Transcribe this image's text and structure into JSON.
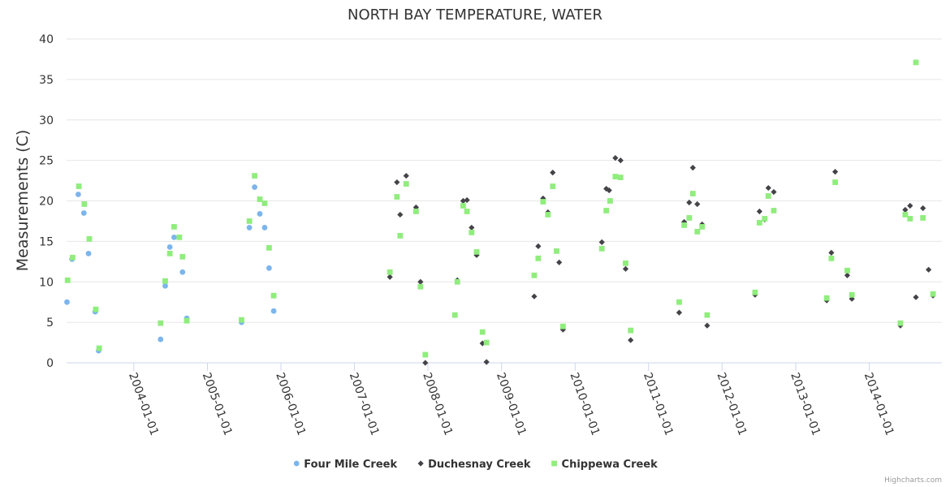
{
  "chart_data": {
    "type": "scatter",
    "title": "NORTH BAY TEMPERATURE, WATER",
    "ylabel": "Measurements (C)",
    "xlabel": "",
    "ylim": [
      0,
      40
    ],
    "yticks": [
      0,
      5,
      10,
      15,
      20,
      25,
      30,
      35,
      40
    ],
    "xlim": [
      "2003-02-01",
      "2014-12-28"
    ],
    "xticks": [
      "2004-01-01",
      "2005-01-01",
      "2006-01-01",
      "2007-01-01",
      "2008-01-01",
      "2009-01-01",
      "2010-01-01",
      "2011-01-01",
      "2012-01-01",
      "2013-01-01",
      "2014-01-01"
    ],
    "legend_position": "bottom-center",
    "credits": "Highcharts.com",
    "series": [
      {
        "name": "Four Mile Creek",
        "color": "#7cb5ec",
        "marker": "circle",
        "points": [
          [
            "2003-02-03",
            7.5
          ],
          [
            "2003-02-28",
            12.8
          ],
          [
            "2003-03-31",
            20.8
          ],
          [
            "2003-04-28",
            18.5
          ],
          [
            "2003-05-21",
            13.5
          ],
          [
            "2003-06-23",
            6.3
          ],
          [
            "2003-07-10",
            1.5
          ],
          [
            "2004-05-13",
            2.9
          ],
          [
            "2004-06-05",
            9.5
          ],
          [
            "2004-06-28",
            14.3
          ],
          [
            "2004-07-19",
            15.5
          ],
          [
            "2004-08-30",
            11.2
          ],
          [
            "2004-09-20",
            5.5
          ],
          [
            "2005-06-19",
            5.0
          ],
          [
            "2005-07-28",
            16.7
          ],
          [
            "2005-08-23",
            21.7
          ],
          [
            "2005-09-18",
            18.4
          ],
          [
            "2005-10-12",
            16.7
          ],
          [
            "2005-11-03",
            11.7
          ],
          [
            "2005-11-26",
            6.4
          ]
        ]
      },
      {
        "name": "Duchesnay Creek",
        "color": "#434348",
        "marker": "diamond",
        "points": [
          [
            "2007-06-26",
            10.6
          ],
          [
            "2007-07-31",
            22.3
          ],
          [
            "2007-08-16",
            18.3
          ],
          [
            "2007-09-15",
            23.1
          ],
          [
            "2007-11-03",
            19.2
          ],
          [
            "2007-11-25",
            10.0
          ],
          [
            "2007-12-19",
            0.0
          ],
          [
            "2008-05-26",
            10.2
          ],
          [
            "2008-06-24",
            20.0
          ],
          [
            "2008-07-13",
            20.1
          ],
          [
            "2008-08-05",
            16.7
          ],
          [
            "2008-08-30",
            13.3
          ],
          [
            "2008-09-28",
            2.4
          ],
          [
            "2008-10-18",
            0.1
          ],
          [
            "2009-06-12",
            8.2
          ],
          [
            "2009-07-02",
            14.4
          ],
          [
            "2009-07-26",
            20.3
          ],
          [
            "2009-08-19",
            18.6
          ],
          [
            "2009-09-12",
            23.5
          ],
          [
            "2009-10-14",
            12.4
          ],
          [
            "2009-11-02",
            4.1
          ],
          [
            "2010-05-14",
            14.9
          ],
          [
            "2010-06-05",
            21.5
          ],
          [
            "2010-06-19",
            21.3
          ],
          [
            "2010-07-20",
            25.3
          ],
          [
            "2010-08-15",
            25.0
          ],
          [
            "2010-09-09",
            11.6
          ],
          [
            "2010-10-04",
            2.8
          ],
          [
            "2011-06-02",
            6.2
          ],
          [
            "2011-06-27",
            17.4
          ],
          [
            "2011-07-22",
            19.8
          ],
          [
            "2011-08-09",
            24.1
          ],
          [
            "2011-08-31",
            19.6
          ],
          [
            "2011-09-24",
            17.1
          ],
          [
            "2011-10-19",
            4.6
          ],
          [
            "2012-06-13",
            8.4
          ],
          [
            "2012-07-05",
            18.7
          ],
          [
            "2012-07-31",
            17.7
          ],
          [
            "2012-08-18",
            21.6
          ],
          [
            "2012-09-14",
            21.1
          ],
          [
            "2013-06-04",
            7.7
          ],
          [
            "2013-06-27",
            13.6
          ],
          [
            "2013-07-16",
            23.6
          ],
          [
            "2013-09-14",
            10.8
          ],
          [
            "2013-10-07",
            7.9
          ],
          [
            "2014-06-05",
            4.6
          ],
          [
            "2014-06-29",
            18.9
          ],
          [
            "2014-07-23",
            19.4
          ],
          [
            "2014-08-21",
            8.1
          ],
          [
            "2014-09-25",
            19.1
          ],
          [
            "2014-10-23",
            11.5
          ],
          [
            "2014-11-14",
            8.3
          ]
        ]
      },
      {
        "name": "Chippewa Creek",
        "color": "#90ed7d",
        "marker": "square",
        "points": [
          [
            "2003-02-06",
            10.2
          ],
          [
            "2003-03-03",
            13.0
          ],
          [
            "2003-04-03",
            21.8
          ],
          [
            "2003-04-30",
            19.6
          ],
          [
            "2003-05-25",
            15.3
          ],
          [
            "2003-06-26",
            6.6
          ],
          [
            "2003-07-13",
            1.8
          ],
          [
            "2004-05-13",
            4.9
          ],
          [
            "2004-06-05",
            10.1
          ],
          [
            "2004-06-28",
            13.5
          ],
          [
            "2004-07-19",
            16.8
          ],
          [
            "2004-08-14",
            15.5
          ],
          [
            "2004-08-30",
            13.1
          ],
          [
            "2004-09-20",
            5.2
          ],
          [
            "2005-06-19",
            5.3
          ],
          [
            "2005-07-28",
            17.5
          ],
          [
            "2005-08-23",
            23.1
          ],
          [
            "2005-09-18",
            20.2
          ],
          [
            "2005-10-12",
            19.7
          ],
          [
            "2005-11-03",
            14.2
          ],
          [
            "2005-11-26",
            8.3
          ],
          [
            "2007-06-26",
            11.2
          ],
          [
            "2007-07-31",
            20.5
          ],
          [
            "2007-08-16",
            15.7
          ],
          [
            "2007-09-15",
            22.1
          ],
          [
            "2007-11-03",
            18.7
          ],
          [
            "2007-11-25",
            9.4
          ],
          [
            "2007-12-19",
            1.0
          ],
          [
            "2008-05-14",
            5.9
          ],
          [
            "2008-05-26",
            10.0
          ],
          [
            "2008-06-24",
            19.4
          ],
          [
            "2008-07-13",
            18.7
          ],
          [
            "2008-08-05",
            16.1
          ],
          [
            "2008-08-30",
            13.7
          ],
          [
            "2008-09-28",
            3.8
          ],
          [
            "2008-10-18",
            2.5
          ],
          [
            "2009-06-12",
            10.8
          ],
          [
            "2009-07-02",
            12.9
          ],
          [
            "2009-07-26",
            19.9
          ],
          [
            "2009-08-19",
            18.3
          ],
          [
            "2009-09-12",
            21.8
          ],
          [
            "2009-10-01",
            13.8
          ],
          [
            "2009-11-02",
            4.5
          ],
          [
            "2010-05-14",
            14.1
          ],
          [
            "2010-06-05",
            18.8
          ],
          [
            "2010-06-24",
            20.0
          ],
          [
            "2010-07-20",
            23.0
          ],
          [
            "2010-08-15",
            22.9
          ],
          [
            "2010-09-09",
            12.3
          ],
          [
            "2010-10-04",
            4.0
          ],
          [
            "2011-06-02",
            7.5
          ],
          [
            "2011-06-27",
            17.0
          ],
          [
            "2011-07-22",
            17.9
          ],
          [
            "2011-08-09",
            20.9
          ],
          [
            "2011-08-31",
            16.2
          ],
          [
            "2011-09-24",
            16.8
          ],
          [
            "2011-10-19",
            5.9
          ],
          [
            "2012-06-13",
            8.7
          ],
          [
            "2012-07-05",
            17.3
          ],
          [
            "2012-07-31",
            17.8
          ],
          [
            "2012-08-18",
            20.6
          ],
          [
            "2012-09-14",
            18.8
          ],
          [
            "2013-06-04",
            8.0
          ],
          [
            "2013-06-27",
            12.9
          ],
          [
            "2013-07-16",
            22.3
          ],
          [
            "2013-09-14",
            11.4
          ],
          [
            "2013-10-07",
            8.4
          ],
          [
            "2014-06-05",
            4.9
          ],
          [
            "2014-06-29",
            18.3
          ],
          [
            "2014-07-23",
            17.8
          ],
          [
            "2014-08-21",
            37.1
          ],
          [
            "2014-09-25",
            17.9
          ],
          [
            "2014-11-14",
            8.5
          ]
        ]
      }
    ]
  }
}
